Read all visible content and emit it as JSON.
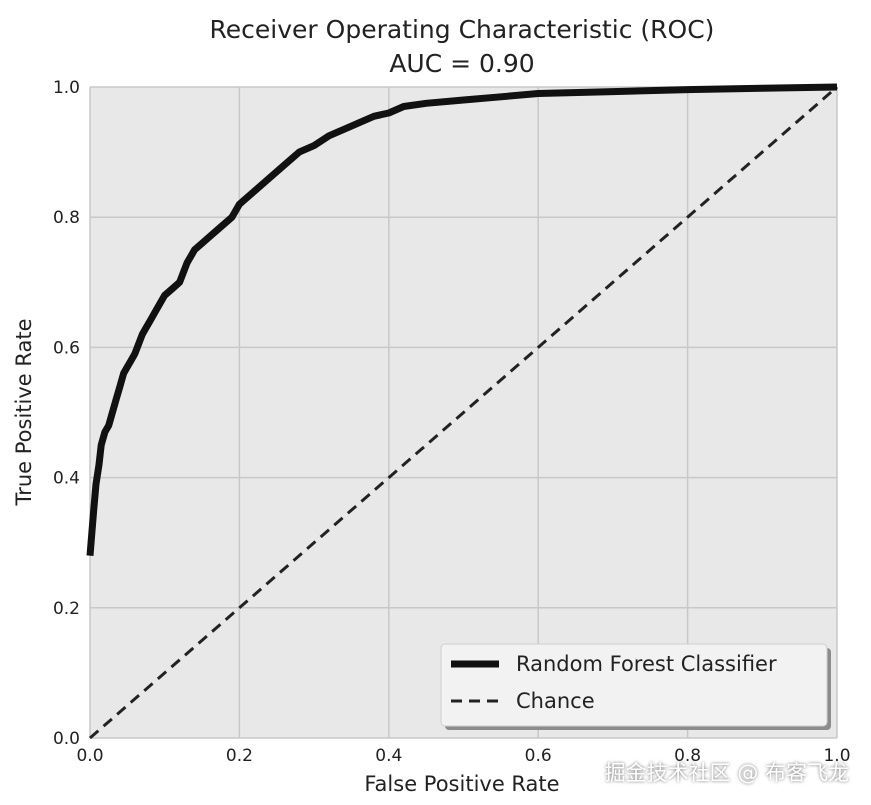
{
  "chart_data": {
    "type": "line",
    "title": "Receiver Operating Characteristic (ROC)",
    "subtitle": "AUC = 0.90",
    "xlabel": "False Positive Rate",
    "ylabel": "True Positive Rate",
    "xlim": [
      0.0,
      1.0
    ],
    "ylim": [
      0.0,
      1.0
    ],
    "xticks": [
      "0.0",
      "0.2",
      "0.4",
      "0.6",
      "0.8",
      "1.0"
    ],
    "yticks": [
      "0.0",
      "0.2",
      "0.4",
      "0.6",
      "0.8",
      "1.0"
    ],
    "grid": true,
    "legend_position": "lower-right",
    "series": [
      {
        "name": "Random Forest Classifier",
        "style": "solid",
        "color": "#111111",
        "x": [
          0.0,
          0.005,
          0.008,
          0.012,
          0.015,
          0.02,
          0.025,
          0.03,
          0.035,
          0.04,
          0.045,
          0.05,
          0.055,
          0.06,
          0.07,
          0.075,
          0.08,
          0.09,
          0.1,
          0.11,
          0.12,
          0.13,
          0.14,
          0.15,
          0.16,
          0.17,
          0.18,
          0.19,
          0.2,
          0.22,
          0.24,
          0.26,
          0.28,
          0.3,
          0.32,
          0.34,
          0.36,
          0.38,
          0.4,
          0.42,
          0.45,
          0.5,
          0.55,
          0.6,
          0.7,
          0.8,
          0.9,
          1.0
        ],
        "y": [
          0.28,
          0.35,
          0.39,
          0.42,
          0.45,
          0.47,
          0.48,
          0.5,
          0.52,
          0.54,
          0.56,
          0.57,
          0.58,
          0.59,
          0.62,
          0.63,
          0.64,
          0.66,
          0.68,
          0.69,
          0.7,
          0.73,
          0.75,
          0.76,
          0.77,
          0.78,
          0.79,
          0.8,
          0.82,
          0.84,
          0.86,
          0.88,
          0.9,
          0.91,
          0.925,
          0.935,
          0.945,
          0.955,
          0.96,
          0.97,
          0.975,
          0.98,
          0.985,
          0.99,
          0.993,
          0.996,
          0.998,
          1.0
        ]
      },
      {
        "name": "Chance",
        "style": "dashed",
        "color": "#222222",
        "x": [
          0.0,
          1.0
        ],
        "y": [
          0.0,
          1.0
        ]
      }
    ]
  },
  "watermark": "掘金技术社区 @ 布客飞龙",
  "colors": {
    "plot_background": "#e8e8e8",
    "grid": "#c8c8c8",
    "legend_background": "#f2f2f2"
  }
}
